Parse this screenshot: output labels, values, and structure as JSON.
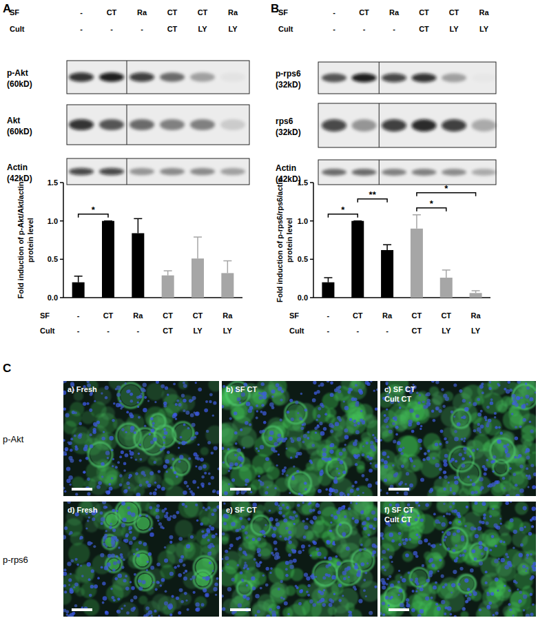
{
  "panels": [
    {
      "letter": "A",
      "header_rows": [
        {
          "label": "SF",
          "values": [
            "-",
            "CT",
            "Ra",
            "CT",
            "CT",
            "Ra"
          ]
        },
        {
          "label": "Cult",
          "values": [
            "-",
            "-",
            "-",
            "CT",
            "LY",
            "LY"
          ]
        }
      ],
      "blots": [
        {
          "name": "p-Akt",
          "size": "(60kD)"
        },
        {
          "name": "Akt",
          "size": "(60kD)"
        },
        {
          "name": "Actin",
          "size": "(42kD)"
        }
      ]
    },
    {
      "letter": "B",
      "header_rows": [
        {
          "label": "SF",
          "values": [
            "-",
            "CT",
            "Ra",
            "CT",
            "CT",
            "Ra"
          ]
        },
        {
          "label": "Cult",
          "values": [
            "-",
            "-",
            "-",
            "CT",
            "LY",
            "LY"
          ]
        }
      ],
      "blots": [
        {
          "name": "p-rps6",
          "size": "(32kD)"
        },
        {
          "name": "rps6",
          "size": "(32kD)"
        },
        {
          "name": "Actin",
          "size": "(42kD)"
        }
      ]
    }
  ],
  "chart_data": [
    {
      "type": "bar",
      "y_label": [
        "Fold induction of p-Akt/Akt/actin",
        "protein level"
      ],
      "category_rows": [
        {
          "label": "SF",
          "values": [
            "-",
            "CT",
            "Ra",
            "CT",
            "CT",
            "Ra"
          ]
        },
        {
          "label": "Cult",
          "values": [
            "-",
            "-",
            "-",
            "CT",
            "LY",
            "LY"
          ]
        }
      ],
      "values": [
        0.2,
        1.0,
        0.84,
        0.29,
        0.51,
        0.32
      ],
      "errors": [
        0.08,
        0,
        0.19,
        0.06,
        0.28,
        0.16
      ],
      "colors": [
        "#000000",
        "#000000",
        "#000000",
        "#a6a6a6",
        "#a6a6a6",
        "#a6a6a6"
      ],
      "ylim": [
        0,
        1.5
      ],
      "yticks": [
        {
          "value": 0,
          "label": "0.0"
        },
        {
          "value": 0.5,
          "label": "0.5"
        },
        {
          "value": 1,
          "label": "1.0"
        },
        {
          "value": 1.5,
          "label": "1.5"
        }
      ],
      "annotations": [
        {
          "from": 0,
          "to": 1,
          "text": "*"
        }
      ]
    },
    {
      "type": "bar",
      "y_label": [
        "Fold induction of p-rps6/rps6/actin",
        "protein level"
      ],
      "category_rows": [
        {
          "label": "SF",
          "values": [
            "-",
            "CT",
            "Ra",
            "CT",
            "CT",
            "Ra"
          ]
        },
        {
          "label": "Cult",
          "values": [
            "-",
            "-",
            "-",
            "CT",
            "LY",
            "LY"
          ]
        }
      ],
      "values": [
        0.2,
        1.0,
        0.62,
        0.9,
        0.26,
        0.06
      ],
      "errors": [
        0.06,
        0,
        0.07,
        0.18,
        0.1,
        0.03
      ],
      "colors": [
        "#000000",
        "#000000",
        "#000000",
        "#a6a6a6",
        "#a6a6a6",
        "#a6a6a6"
      ],
      "ylim": [
        0,
        1.5
      ],
      "yticks": [
        {
          "value": 0,
          "label": "0.0"
        },
        {
          "value": 0.5,
          "label": "0.5"
        },
        {
          "value": 1,
          "label": "1.0"
        },
        {
          "value": 1.5,
          "label": "1.5"
        }
      ],
      "annotations": [
        {
          "from": 0,
          "to": 1,
          "text": "*"
        },
        {
          "from": 1,
          "to": 2,
          "text": "**"
        },
        {
          "from": 3,
          "to": 4,
          "text": "*"
        },
        {
          "from": 3,
          "to": 5,
          "text": "*"
        }
      ]
    }
  ],
  "imaging": {
    "letter": "C",
    "rows": [
      {
        "label": "p-Akt",
        "images": [
          {
            "lines": [
              "a) Fresh"
            ]
          },
          {
            "lines": [
              "b) SF CT"
            ]
          },
          {
            "lines": [
              "c) SF CT",
              "Cult CT"
            ]
          }
        ]
      },
      {
        "label": "p-rps6",
        "images": [
          {
            "lines": [
              "d) Fresh"
            ]
          },
          {
            "lines": [
              "e) SF CT"
            ]
          },
          {
            "lines": [
              "f) SF CT",
              "Cult CT"
            ]
          }
        ]
      }
    ]
  }
}
